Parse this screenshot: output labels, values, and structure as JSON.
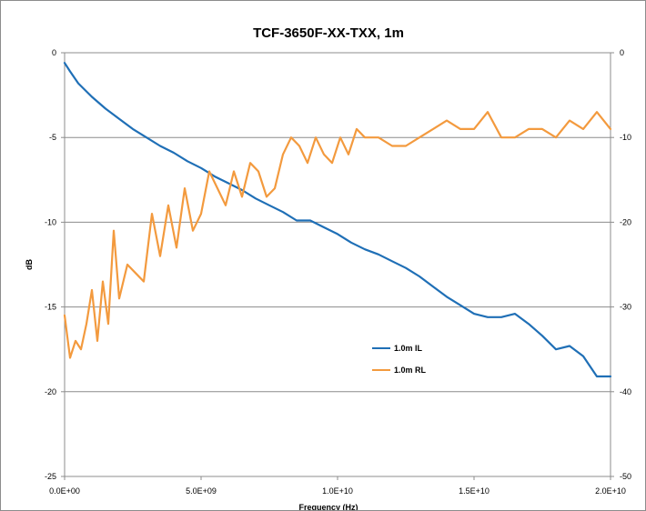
{
  "chart_data": {
    "type": "line",
    "title": "TCF-3650F-XX-TXX, 1m",
    "xlabel": "Frequency (Hz)",
    "ylabel": "dB",
    "y2label": "",
    "xlim": [
      0,
      20000000000
    ],
    "ylim": [
      -25,
      0
    ],
    "y2lim": [
      -50,
      0
    ],
    "x_ticks": [
      "0.0E+00",
      "5.0E+09",
      "1.0E+10",
      "1.5E+10",
      "2.0E+10"
    ],
    "y_ticks": [
      "0",
      "-5",
      "-10",
      "-15",
      "-20",
      "-25"
    ],
    "y2_ticks": [
      "0",
      "-10",
      "-20",
      "-30",
      "-40",
      "-50"
    ],
    "grid": "horizontal",
    "legend_position": "center-right",
    "series": [
      {
        "name": "1.0m IL",
        "axis": "left",
        "color": "#1f6fb6",
        "x": [
          0,
          200000000,
          500000000,
          1000000000,
          1500000000,
          2000000000,
          2500000000,
          3000000000,
          3500000000,
          4000000000,
          4500000000,
          5000000000,
          5500000000,
          6000000000,
          6500000000,
          7000000000,
          7500000000,
          8000000000,
          8500000000,
          9000000000,
          9500000000,
          10000000000,
          10500000000,
          11000000000,
          11500000000,
          12000000000,
          12500000000,
          13000000000,
          13500000000,
          14000000000,
          14500000000,
          15000000000,
          15500000000,
          16000000000,
          16500000000,
          17000000000,
          17500000000,
          18000000000,
          18500000000,
          19000000000,
          19500000000,
          20000000000
        ],
        "y": [
          -0.6,
          -1.1,
          -1.8,
          -2.6,
          -3.3,
          -3.9,
          -4.5,
          -5.0,
          -5.5,
          -5.9,
          -6.4,
          -6.8,
          -7.3,
          -7.7,
          -8.1,
          -8.6,
          -9.0,
          -9.4,
          -9.9,
          -9.9,
          -10.3,
          -10.7,
          -11.2,
          -11.6,
          -11.9,
          -12.3,
          -12.7,
          -13.2,
          -13.8,
          -14.4,
          -14.9,
          -15.4,
          -15.6,
          -15.6,
          -15.4,
          -16.0,
          -16.7,
          -17.5,
          -17.3,
          -17.9,
          -19.1,
          -19.1
        ]
      },
      {
        "name": "1.0m RL",
        "axis": "right",
        "color": "#f39a3e",
        "x": [
          0,
          200000000,
          400000000,
          600000000,
          800000000,
          1000000000,
          1200000000,
          1400000000,
          1600000000,
          1800000000,
          2000000000,
          2300000000,
          2600000000,
          2900000000,
          3200000000,
          3500000000,
          3800000000,
          4100000000,
          4400000000,
          4700000000,
          5000000000,
          5300000000,
          5600000000,
          5900000000,
          6200000000,
          6500000000,
          6800000000,
          7100000000,
          7400000000,
          7700000000,
          8000000000,
          8300000000,
          8600000000,
          8900000000,
          9200000000,
          9500000000,
          9800000000,
          10100000000,
          10400000000,
          10700000000,
          11000000000,
          11500000000,
          12000000000,
          12500000000,
          13000000000,
          13500000000,
          14000000000,
          14500000000,
          15000000000,
          15500000000,
          16000000000,
          16500000000,
          17000000000,
          17500000000,
          18000000000,
          18500000000,
          19000000000,
          19500000000,
          20000000000
        ],
        "y": [
          -31,
          -36,
          -34,
          -35,
          -32,
          -28,
          -34,
          -27,
          -32,
          -21,
          -29,
          -25,
          -26,
          -27,
          -19,
          -24,
          -18,
          -23,
          -16,
          -21,
          -19,
          -14,
          -16,
          -18,
          -14,
          -17,
          -13,
          -14,
          -17,
          -16,
          -12,
          -10,
          -11,
          -13,
          -10,
          -12,
          -13,
          -10,
          -12,
          -9,
          -10,
          -10,
          -11,
          -11,
          -10,
          -9,
          -8,
          -9,
          -9,
          -7,
          -10,
          -10,
          -9,
          -9,
          -10,
          -8,
          -9,
          -7,
          -9
        ]
      }
    ]
  }
}
